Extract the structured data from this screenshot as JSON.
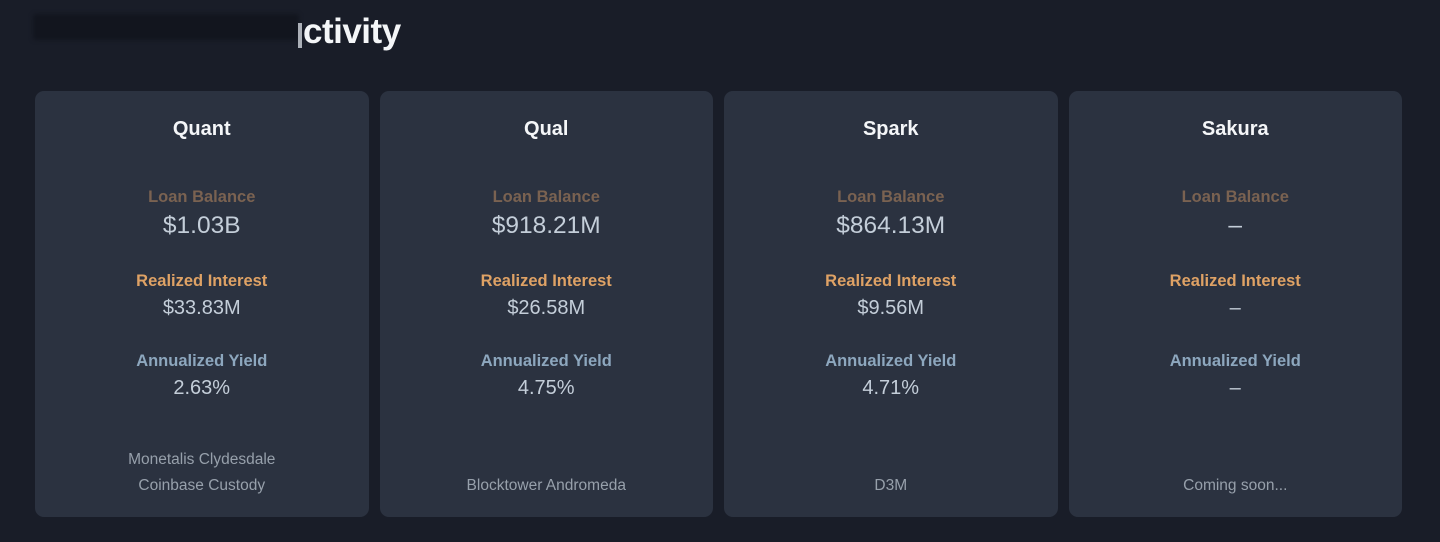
{
  "colors": {
    "page-bg": "#191d28",
    "card-bg": "#2b3240",
    "title-color": "#f4f6f8",
    "label-dim": "#7a6251",
    "label-orange": "#dfa265",
    "label-blue": "#8da7be",
    "value-color": "#c4ced9",
    "footer-color": "#97a0ab",
    "redaction-color": "#12151e"
  },
  "header": {
    "title_visible": "ctivity"
  },
  "cards": [
    {
      "title": "Quant",
      "stats": [
        {
          "label": "Loan Balance",
          "value": "$1.03B"
        },
        {
          "label": "Realized Interest",
          "value": "$33.83M"
        },
        {
          "label": "Annualized Yield",
          "value": "2.63%"
        }
      ],
      "footer_lines": [
        "Monetalis Clydesdale",
        "Coinbase Custody"
      ]
    },
    {
      "title": "Qual",
      "stats": [
        {
          "label": "Loan Balance",
          "value": "$918.21M"
        },
        {
          "label": "Realized Interest",
          "value": "$26.58M"
        },
        {
          "label": "Annualized Yield",
          "value": "4.75%"
        }
      ],
      "footer_lines": [
        "Blocktower Andromeda"
      ]
    },
    {
      "title": "Spark",
      "stats": [
        {
          "label": "Loan Balance",
          "value": "$864.13M"
        },
        {
          "label": "Realized Interest",
          "value": "$9.56M"
        },
        {
          "label": "Annualized Yield",
          "value": "4.71%"
        }
      ],
      "footer_lines": [
        "D3M"
      ]
    },
    {
      "title": "Sakura",
      "stats": [
        {
          "label": "Loan Balance",
          "value": "–"
        },
        {
          "label": "Realized Interest",
          "value": "–"
        },
        {
          "label": "Annualized Yield",
          "value": "–"
        }
      ],
      "footer_lines": [
        "Coming soon..."
      ]
    }
  ]
}
